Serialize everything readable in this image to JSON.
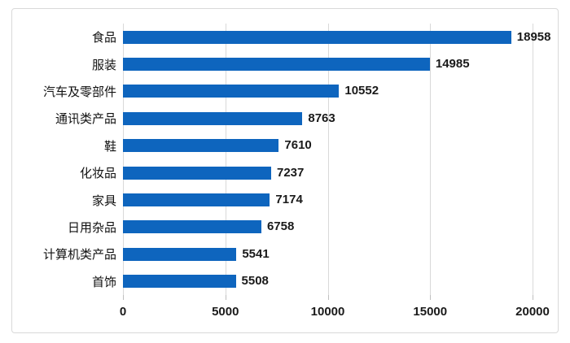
{
  "chart_data": {
    "type": "bar",
    "orientation": "horizontal",
    "title": "",
    "categories": [
      "食品",
      "服装",
      "汽车及零部件",
      "通讯类产品",
      "鞋",
      "化妆品",
      "家具",
      "日用杂品",
      "计算机类产品",
      "首饰"
    ],
    "values": [
      18958,
      14985,
      10552,
      8763,
      7610,
      7237,
      7174,
      6758,
      5541,
      5508
    ],
    "data_labels": [
      "18958",
      "14985",
      "10552",
      "8763",
      "7610",
      "7237",
      "7174",
      "6758",
      "5541",
      "5508"
    ],
    "xlim": [
      0,
      20000
    ],
    "xticks": [
      0,
      5000,
      10000,
      15000,
      20000
    ],
    "xtick_labels": [
      "0",
      "5000",
      "10000",
      "15000",
      "20000"
    ],
    "xlabel": "",
    "ylabel": "",
    "legend": "none",
    "grid": "vertical-on",
    "colors": {
      "bar": "#0e65be",
      "gridline": "#d9d9d9",
      "tick": "#bfbfbf",
      "frame_border": "#d9d9d9",
      "text": "#1a1a1a",
      "background": "#ffffff"
    }
  }
}
